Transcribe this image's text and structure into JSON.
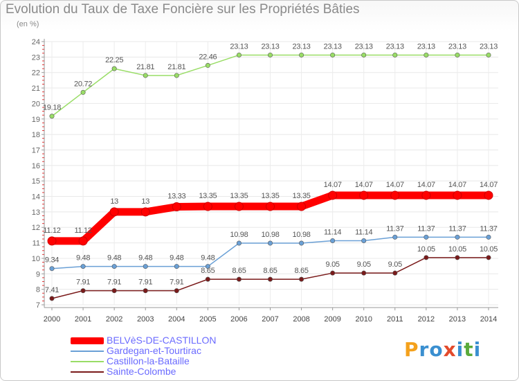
{
  "chart_data": {
    "type": "line",
    "title": "Evolution du Taux de Taxe Foncière sur les Propriétés Bâties",
    "ylabel": "(en %)",
    "xlabel": "",
    "ylim": [
      7,
      24
    ],
    "yticks": [
      "7",
      "8",
      "9",
      "10",
      "11",
      "12",
      "13",
      "14",
      "15",
      "16",
      "17",
      "18",
      "19",
      "20",
      "21",
      "22",
      "23",
      "24"
    ],
    "categories": [
      "2000",
      "2001",
      "2002",
      "2003",
      "2004",
      "2005",
      "2006",
      "2007",
      "2008",
      "2009",
      "2010",
      "2011",
      "2012",
      "2013",
      "2014"
    ],
    "series": [
      {
        "name": "BELVèS-DE-CASTILLON",
        "color": "#ff0000",
        "values": [
          11.12,
          11.12,
          13,
          13,
          13.33,
          13.35,
          13.35,
          13.35,
          13.35,
          14.07,
          14.07,
          14.07,
          14.07,
          14.07,
          14.07
        ],
        "labels": [
          "11.12",
          "11.12",
          "13",
          "13",
          "13.33",
          "13.35",
          "13.35",
          "13.35",
          "13.35",
          "14.07",
          "14.07",
          "14.07",
          "14.07",
          "14.07",
          "14.07"
        ]
      },
      {
        "name": "Gardegan-et-Tourtirac",
        "color": "#6aa0d6",
        "values": [
          9.34,
          9.48,
          9.48,
          9.48,
          9.48,
          9.48,
          10.98,
          10.98,
          10.98,
          11.14,
          11.14,
          11.37,
          11.37,
          11.37,
          11.37
        ],
        "labels": [
          "9.34",
          "9.48",
          "9.48",
          "9.48",
          "9.48",
          "9.48",
          "10.98",
          "10.98",
          "10.98",
          "11.14",
          "11.14",
          "11.37",
          "11.37",
          "11.37",
          "11.37"
        ]
      },
      {
        "name": "Castillon-la-Bataille",
        "color": "#99dd66",
        "values": [
          19.18,
          20.72,
          22.25,
          21.81,
          21.81,
          22.46,
          23.13,
          23.13,
          23.13,
          23.13,
          23.13,
          23.13,
          23.13,
          23.13,
          23.13
        ],
        "labels": [
          "19.18",
          "20.72",
          "22.25",
          "21.81",
          "21.81",
          "22.46",
          "23.13",
          "23.13",
          "23.13",
          "23.13",
          "23.13",
          "23.13",
          "23.13",
          "23.13",
          "23.13"
        ]
      },
      {
        "name": "Sainte-Colombe",
        "color": "#7a1a1a",
        "values": [
          7.41,
          7.91,
          7.91,
          7.91,
          7.91,
          8.65,
          8.65,
          8.65,
          8.65,
          9.05,
          9.05,
          9.05,
          10.05,
          10.05,
          10.05
        ],
        "labels": [
          "7.41",
          "7.91",
          "7.91",
          "7.91",
          "7.91",
          "8.65",
          "8.65",
          "8.65",
          "8.65",
          "9.05",
          "9.05",
          "9.05",
          "10.05",
          "10.05",
          "10.05"
        ]
      }
    ],
    "legend_position": "bottom-left"
  },
  "legend": {
    "items": [
      {
        "label": "BELVèS-DE-CASTILLON",
        "color": "#ff0000"
      },
      {
        "label": "Gardegan-et-Tourtirac",
        "color": "#6aa0d6"
      },
      {
        "label": "Castillon-la-Bataille",
        "color": "#99dd66"
      },
      {
        "label": "Sainte-Colombe",
        "color": "#7a1a1a"
      }
    ]
  },
  "watermark": {
    "chars": [
      "P",
      "r",
      "o",
      "x",
      "i",
      "t",
      "i"
    ]
  }
}
